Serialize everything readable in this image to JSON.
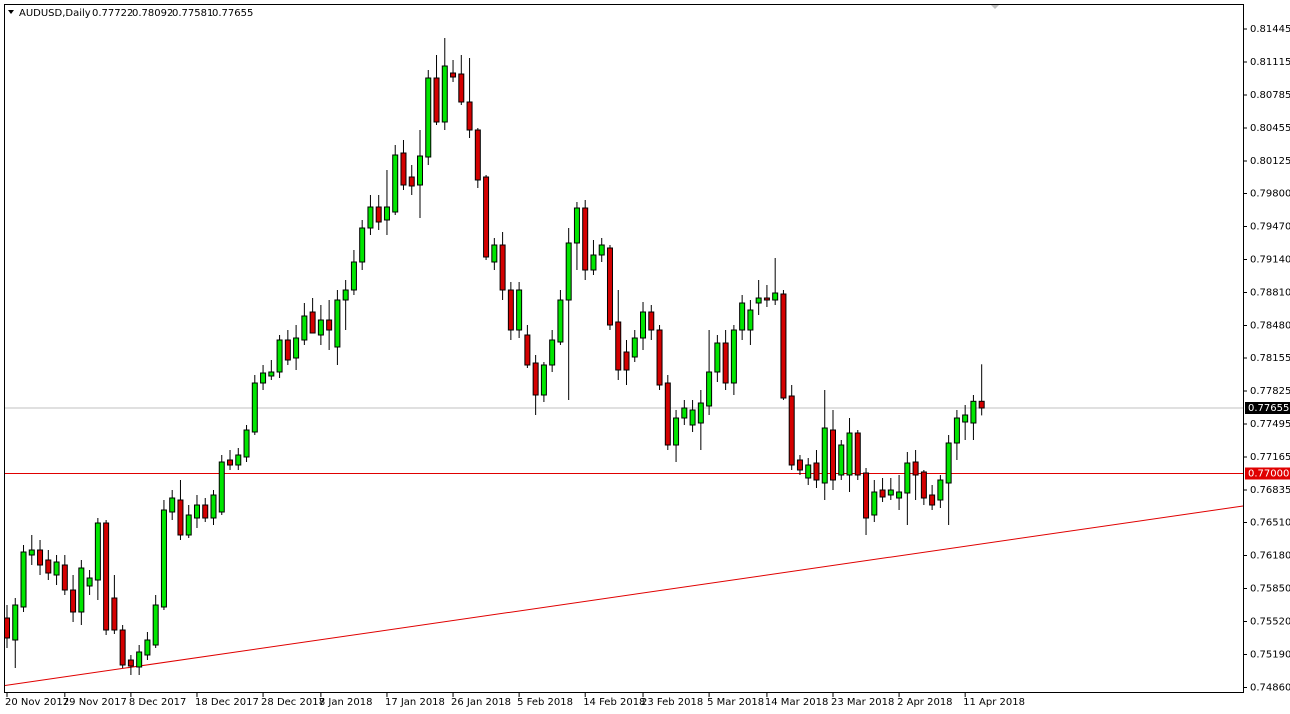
{
  "chart_data": {
    "type": "candlestick",
    "title": "AUDUSD,Daily",
    "header_values": [
      0.77722,
      0.78092,
      0.77581,
      0.77655
    ],
    "categories": [
      "20 Nov 2017",
      null,
      null,
      null,
      null,
      null,
      null,
      "29 Nov 2017",
      null,
      null,
      null,
      null,
      null,
      null,
      null,
      "8 Dec 2017",
      null,
      null,
      null,
      null,
      null,
      null,
      null,
      "18 Dec 2017",
      null,
      null,
      null,
      null,
      null,
      null,
      null,
      "28 Dec 2017",
      null,
      null,
      null,
      null,
      null,
      null,
      "8 Jan 2018",
      null,
      null,
      null,
      null,
      null,
      null,
      null,
      "17 Jan 2018",
      null,
      null,
      null,
      null,
      null,
      null,
      null,
      "26 Jan 2018",
      null,
      null,
      null,
      null,
      null,
      null,
      null,
      "5 Feb 2018",
      null,
      null,
      null,
      null,
      null,
      null,
      null,
      "14 Feb 2018",
      null,
      null,
      null,
      null,
      null,
      null,
      "23 Feb 2018",
      null,
      null,
      null,
      null,
      null,
      null,
      null,
      "5 Mar 2018",
      null,
      null,
      null,
      null,
      null,
      null,
      "14 Mar 2018",
      null,
      null,
      null,
      null,
      null,
      null,
      null,
      "23 Mar 2018",
      null,
      null,
      null,
      null,
      null,
      null,
      null,
      "2 Apr 2018",
      null,
      null,
      null,
      null,
      null,
      null,
      null,
      "11 Apr 2018",
      null,
      null
    ],
    "open": [
      0.75555,
      0.75335,
      0.75665,
      0.76185,
      0.76235,
      0.76135,
      0.75985,
      0.76085,
      0.75835,
      0.75615,
      0.75875,
      0.75935,
      0.76505,
      0.75755,
      0.75435,
      0.75135,
      0.75065,
      0.75185,
      0.75285,
      0.75665,
      0.76615,
      0.76735,
      0.76385,
      0.76555,
      0.76685,
      0.76555,
      0.76615,
      0.77135,
      0.77085,
      0.77165,
      0.77415,
      0.77905,
      0.77975,
      0.78015,
      0.78335,
      0.78155,
      0.78335,
      0.78615,
      0.78385,
      0.78535,
      0.78265,
      0.78735,
      0.78835,
      0.79115,
      0.79455,
      0.79665,
      0.79535,
      0.79615,
      0.80205,
      0.79965,
      0.79885,
      0.80165,
      0.80955,
      0.80515,
      0.81005,
      0.80995,
      0.80715,
      0.80435,
      0.79965,
      0.79115,
      0.79285,
      0.78835,
      0.78435,
      0.78385,
      0.78105,
      0.77785,
      0.78085,
      0.78315,
      0.78735,
      0.79305,
      0.79655,
      0.79035,
      0.79185,
      0.79255,
      0.78515,
      0.78215,
      0.78165,
      0.78355,
      0.78615,
      0.78435,
      0.77905,
      0.77285,
      0.77555,
      0.77485,
      0.77505,
      0.77675,
      0.78015,
      0.78305,
      0.77905,
      0.78435,
      0.78435,
      0.78705,
      0.78755,
      0.78735,
      0.78795,
      0.77775,
      0.77135,
      0.76955,
      0.77105,
      0.76905,
      0.77435,
      0.76985,
      0.76985,
      0.77405,
      0.77005,
      0.76585,
      0.76835,
      0.76785,
      0.76755,
      0.76805,
      0.77115,
      0.77015,
      0.76785,
      0.76735,
      0.76905,
      0.77305,
      0.77515,
      0.77505,
      0.77722
    ],
    "high": [
      0.75685,
      0.75755,
      0.76285,
      0.76385,
      0.76335,
      0.76235,
      0.76185,
      0.76185,
      0.75985,
      0.76135,
      0.76035,
      0.76555,
      0.76535,
      0.75985,
      0.75485,
      0.75185,
      0.75285,
      0.75415,
      0.75785,
      0.76735,
      0.76835,
      0.76935,
      0.76685,
      0.76785,
      0.76755,
      0.76835,
      0.77185,
      0.77235,
      0.77255,
      0.77485,
      0.77985,
      0.78085,
      0.78135,
      0.78385,
      0.78435,
      0.78485,
      0.78705,
      0.78755,
      0.78685,
      0.78735,
      0.78835,
      0.78935,
      0.79235,
      0.79535,
      0.79785,
      0.79785,
      0.80035,
      0.80285,
      0.80335,
      0.80085,
      0.80435,
      0.81035,
      0.81185,
      0.81355,
      0.81135,
      0.81185,
      0.81155,
      0.80455,
      0.79985,
      0.79355,
      0.79415,
      0.78915,
      0.78915,
      0.78485,
      0.78185,
      0.78115,
      0.78435,
      0.78835,
      0.79455,
      0.79715,
      0.79735,
      0.79335,
      0.79355,
      0.79285,
      0.78835,
      0.78335,
      0.78435,
      0.78715,
      0.78685,
      0.78485,
      0.77985,
      0.77635,
      0.77735,
      0.77735,
      0.77835,
      0.78435,
      0.78385,
      0.78435,
      0.78485,
      0.78785,
      0.78735,
      0.78935,
      0.78885,
      0.79155,
      0.78835,
      0.77885,
      0.77185,
      0.77155,
      0.77235,
      0.77835,
      0.77635,
      0.77335,
      0.77555,
      0.77435,
      0.77055,
      0.76935,
      0.76955,
      0.76955,
      0.76985,
      0.77215,
      0.77235,
      0.77035,
      0.76885,
      0.76985,
      0.77385,
      0.77635,
      0.77685,
      0.77785,
      0.78092
    ],
    "low": [
      0.75255,
      0.75055,
      0.75615,
      0.76085,
      0.75985,
      0.75935,
      0.75885,
      0.75785,
      0.75515,
      0.75485,
      0.75785,
      0.75735,
      0.75385,
      0.75395,
      0.75055,
      0.74985,
      0.74985,
      0.75135,
      0.75255,
      0.75635,
      0.76535,
      0.76335,
      0.76355,
      0.76455,
      0.76515,
      0.76485,
      0.76585,
      0.77035,
      0.77035,
      0.77115,
      0.77385,
      0.77835,
      0.77935,
      0.77955,
      0.78085,
      0.78035,
      0.78285,
      0.78405,
      0.78285,
      0.78235,
      0.78085,
      0.78435,
      0.78785,
      0.79035,
      0.79385,
      0.79435,
      0.79385,
      0.79585,
      0.79835,
      0.79785,
      0.79555,
      0.80085,
      0.80485,
      0.80435,
      0.80915,
      0.80685,
      0.80355,
      0.79855,
      0.79135,
      0.79035,
      0.78735,
      0.78335,
      0.78355,
      0.78055,
      0.77585,
      0.77715,
      0.78015,
      0.78285,
      0.77735,
      0.79035,
      0.78935,
      0.78985,
      0.79115,
      0.78435,
      0.77935,
      0.77885,
      0.78115,
      0.78235,
      0.78335,
      0.77835,
      0.77235,
      0.77115,
      0.77485,
      0.77415,
      0.77235,
      0.77585,
      0.77915,
      0.77835,
      0.77785,
      0.78335,
      0.78285,
      0.78585,
      0.78665,
      0.78685,
      0.77735,
      0.77035,
      0.76985,
      0.76885,
      0.76855,
      0.76735,
      0.76835,
      0.76935,
      0.76815,
      0.76935,
      0.76385,
      0.76515,
      0.76715,
      0.76735,
      0.76635,
      0.76485,
      0.76735,
      0.76685,
      0.76635,
      0.76655,
      0.76485,
      0.77135,
      0.77335,
      0.77335,
      0.77581
    ],
    "close": [
      0.75355,
      0.75685,
      0.76215,
      0.76235,
      0.76085,
      0.76005,
      0.76115,
      0.75835,
      0.75615,
      0.76055,
      0.75955,
      0.76505,
      0.75435,
      0.75435,
      0.75085,
      0.75075,
      0.75215,
      0.75335,
      0.75685,
      0.76635,
      0.76755,
      0.76385,
      0.76585,
      0.76685,
      0.76555,
      0.76785,
      0.77115,
      0.77085,
      0.77185,
      0.77435,
      0.77905,
      0.78005,
      0.78015,
      0.78335,
      0.78135,
      0.78355,
      0.78575,
      0.78405,
      0.78535,
      0.78435,
      0.78735,
      0.78835,
      0.79115,
      0.79455,
      0.79665,
      0.79515,
      0.79665,
      0.80185,
      0.79885,
      0.79875,
      0.80175,
      0.80955,
      0.80515,
      0.81075,
      0.80965,
      0.80715,
      0.80435,
      0.79935,
      0.79165,
      0.79285,
      0.78835,
      0.78435,
      0.78835,
      0.78085,
      0.77785,
      0.78085,
      0.78335,
      0.78735,
      0.79305,
      0.79655,
      0.79035,
      0.79185,
      0.79285,
      0.78485,
      0.78035,
      0.78035,
      0.78355,
      0.78615,
      0.78435,
      0.77885,
      0.77285,
      0.77555,
      0.77655,
      0.77635,
      0.77705,
      0.78015,
      0.78305,
      0.77905,
      0.78435,
      0.78705,
      0.78635,
      0.78755,
      0.78735,
      0.78805,
      0.77755,
      0.77085,
      0.77035,
      0.77085,
      0.76935,
      0.77455,
      0.76935,
      0.77285,
      0.77405,
      0.76985,
      0.76555,
      0.76815,
      0.76765,
      0.76835,
      0.76815,
      0.77105,
      0.76985,
      0.76755,
      0.76685,
      0.76935,
      0.77305,
      0.77555,
      0.77585,
      0.77722,
      0.77655
    ],
    "up_color": "#00e600",
    "down_color": "#d40000",
    "ylim": [
      0.74805,
      0.81735
    ],
    "yticks": [
      0.81445,
      0.81115,
      0.80785,
      0.80455,
      0.80125,
      {
        "value": 0.798,
        "label": "0.79800"
      },
      {
        "value": 0.7947,
        "label": "0.79470"
      },
      {
        "value": 0.7914,
        "label": "0.79140"
      },
      {
        "value": 0.7881,
        "label": "0.78810"
      },
      {
        "value": 0.7848,
        "label": "0.78480"
      },
      0.78155,
      0.77825,
      0.77495,
      0.77165,
      0.76835,
      {
        "value": 0.7651,
        "label": "0.76510"
      },
      {
        "value": 0.7618,
        "label": "0.76180"
      },
      {
        "value": 0.7585,
        "label": "0.75850"
      },
      {
        "value": 0.7552,
        "label": "0.75520"
      },
      {
        "value": 0.7519,
        "label": "0.75190"
      },
      {
        "value": 0.7486,
        "label": "0.74860"
      }
    ],
    "price_lines": [
      {
        "value": 0.77655,
        "label": "0.77655",
        "color": "#c0c0c0",
        "label_color": "#000000"
      },
      {
        "value": 0.77,
        "label": "0.77000",
        "color": "#e00000",
        "label_color": "#e00000"
      }
    ],
    "trend_line": {
      "values": [
        0.7488,
        0.76675
      ],
      "color": "#e00000"
    }
  }
}
